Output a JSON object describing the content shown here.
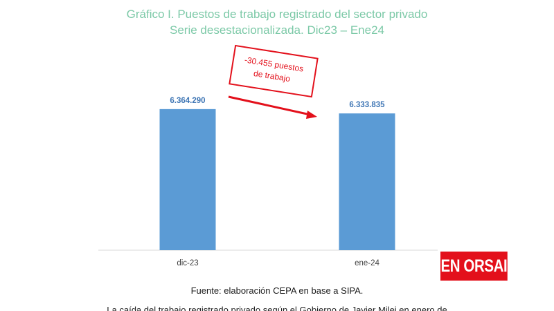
{
  "chart_data": {
    "type": "bar",
    "title": "Gráfico I. Puestos de trabajo registrado del sector privado",
    "subtitle": "Serie desestacionalizada. Dic23 – Ene24",
    "categories": [
      "dic-23",
      "ene-24"
    ],
    "values": [
      6364290,
      6333835
    ],
    "value_labels": [
      "6.364.290",
      "6.333.835"
    ],
    "annotation": {
      "line1": "-30.455 puestos",
      "line2": "de trabajo"
    },
    "ylim": [
      5370000,
      6500000
    ],
    "grid": false,
    "colors": {
      "bar": "#5b9bd5",
      "value_label": "#3f76b5",
      "title": "#7cc9a7",
      "annotation": "#e3101b"
    }
  },
  "source": "Fuente: elaboración CEPA en base a SIPA.",
  "logo": {
    "text": "EN ORSAI"
  },
  "caption": "La caída del trabajo registrado privado según el Gobierno de Javier Milei en enero de"
}
